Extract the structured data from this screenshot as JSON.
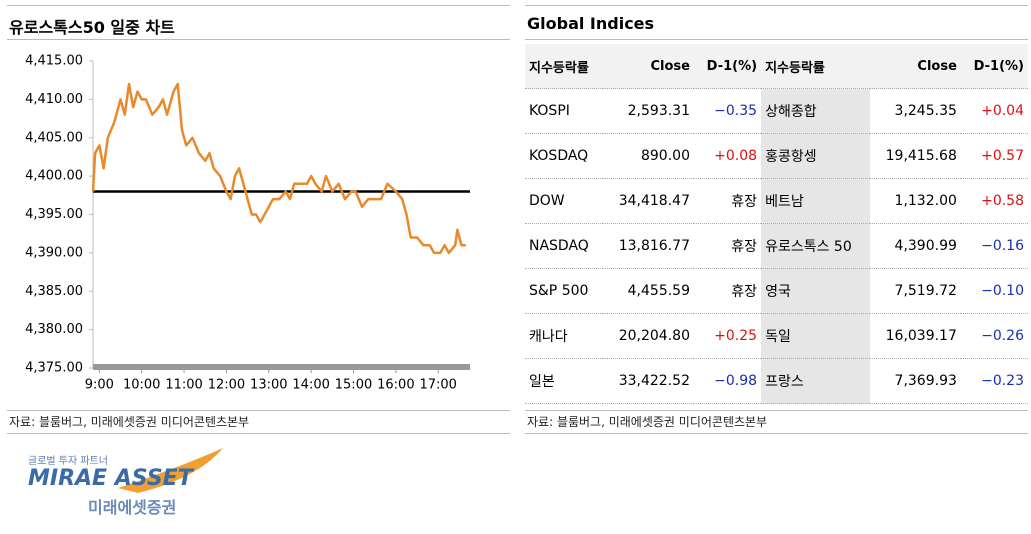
{
  "left": {
    "title": "유로스톡스50 일중 차트",
    "source": "자료: 블룸버그, 미래에셋증권 미디어콘텐츠본부"
  },
  "chart_data": {
    "type": "line",
    "color": "#e8892b",
    "hline": 4398,
    "x": [
      8.85,
      8.9,
      9.0,
      9.1,
      9.2,
      9.35,
      9.5,
      9.6,
      9.7,
      9.8,
      9.9,
      10.0,
      10.1,
      10.25,
      10.4,
      10.5,
      10.6,
      10.75,
      10.85,
      10.95,
      11.05,
      11.2,
      11.35,
      11.5,
      11.6,
      11.7,
      11.85,
      12.0,
      12.1,
      12.2,
      12.3,
      12.45,
      12.6,
      12.7,
      12.8,
      12.9,
      13.0,
      13.1,
      13.25,
      13.4,
      13.5,
      13.6,
      13.75,
      13.9,
      14.0,
      14.1,
      14.25,
      14.35,
      14.5,
      14.65,
      14.8,
      14.95,
      15.05,
      15.2,
      15.35,
      15.5,
      15.65,
      15.8,
      16.0,
      16.15,
      16.25,
      16.35,
      16.5,
      16.65,
      16.8,
      16.9,
      17.05,
      17.15,
      17.25,
      17.4,
      17.45,
      17.55,
      17.65
    ],
    "values": [
      4398,
      4403,
      4404,
      4401,
      4405,
      4407,
      4410,
      4408,
      4412,
      4409,
      4411,
      4410,
      4410,
      4408,
      4409,
      4410,
      4408,
      4411,
      4412,
      4406,
      4404,
      4405,
      4403,
      4402,
      4403,
      4401,
      4400,
      4398,
      4397,
      4400,
      4401,
      4398,
      4395,
      4395,
      4394,
      4395,
      4396,
      4397,
      4397,
      4398,
      4397,
      4399,
      4399,
      4399,
      4400,
      4399,
      4398,
      4400,
      4398,
      4399,
      4397,
      4398,
      4398,
      4396,
      4397,
      4397,
      4397,
      4399,
      4398,
      4397,
      4395,
      4392,
      4392,
      4391,
      4391,
      4390,
      4390,
      4391,
      4390,
      4391,
      4393,
      4391,
      4391
    ],
    "xlim": [
      8.85,
      17.75
    ],
    "xticks": [
      {
        "value": 9,
        "label": "9:00"
      },
      {
        "value": 10,
        "label": "10:00"
      },
      {
        "value": 11,
        "label": "11:00"
      },
      {
        "value": 12,
        "label": "12:00"
      },
      {
        "value": 13,
        "label": "13:00"
      },
      {
        "value": 14,
        "label": "14:00"
      },
      {
        "value": 15,
        "label": "15:00"
      },
      {
        "value": 16,
        "label": "16:00"
      },
      {
        "value": 17,
        "label": "17:00"
      }
    ],
    "ylim": [
      4375,
      4415
    ],
    "yticks": [
      {
        "value": 4375,
        "label": "4,375.00"
      },
      {
        "value": 4380,
        "label": "4,380.00"
      },
      {
        "value": 4385,
        "label": "4,385.00"
      },
      {
        "value": 4390,
        "label": "4,390.00"
      },
      {
        "value": 4395,
        "label": "4,395.00"
      },
      {
        "value": 4400,
        "label": "4,400.00"
      },
      {
        "value": 4405,
        "label": "4,405.00"
      },
      {
        "value": 4410,
        "label": "4,410.00"
      },
      {
        "value": 4415,
        "label": "4,415.00"
      }
    ]
  },
  "right": {
    "title": "Global Indices",
    "source": "자료: 블룸버그, 미래에셋증권 미디어콘텐츠본부",
    "table": {
      "header": [
        "지수등락률",
        "Close",
        "D-1(%)",
        "지수등락률",
        "Close",
        "D-1(%)"
      ],
      "rows": [
        [
          "KOSPI",
          "2,593.31",
          "−0.35",
          "상해종합",
          "3,245.35",
          "+0.04"
        ],
        [
          "KOSDAQ",
          "890.00",
          "+0.08",
          "홍콩항셍",
          "19,415.68",
          "+0.57"
        ],
        [
          "DOW",
          "34,418.47",
          "휴장",
          "베트남",
          "1,132.00",
          "+0.58"
        ],
        [
          "NASDAQ",
          "13,816.77",
          "휴장",
          "유로스톡스 50",
          "4,390.99",
          "−0.16"
        ],
        [
          "S&P 500",
          "4,455.59",
          "휴장",
          "영국",
          "7,519.72",
          "−0.10"
        ],
        [
          "캐나다",
          "20,204.80",
          "+0.25",
          "독일",
          "16,039.17",
          "−0.26"
        ],
        [
          "일본",
          "33,422.52",
          "−0.98",
          "프랑스",
          "7,369.93",
          "−0.23"
        ]
      ]
    }
  },
  "logo": {
    "tagline": "글로벌 투자 파트너",
    "brand": "MIRAE ASSET",
    "name": "미래에셋증권"
  }
}
